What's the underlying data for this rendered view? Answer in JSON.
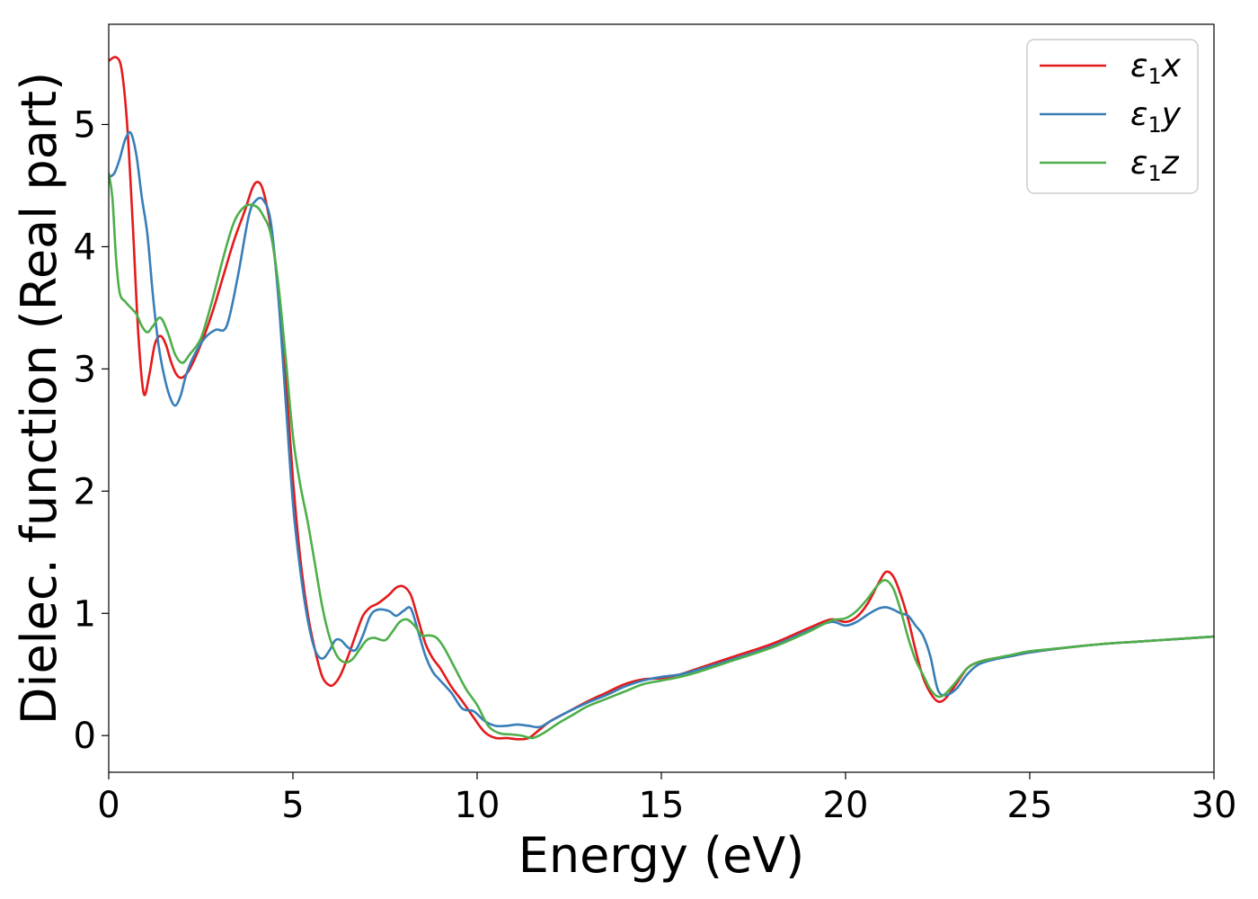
{
  "chart_data": {
    "type": "line",
    "xlabel": "Energy (eV)",
    "ylabel": "Dielec. function (Real part)",
    "xlim": [
      0,
      30
    ],
    "ylim": [
      -0.3,
      5.82
    ],
    "xticks": [
      0,
      5,
      10,
      15,
      20,
      25,
      30
    ],
    "xtick_labels": [
      "0",
      "5",
      "10",
      "15",
      "20",
      "25",
      "30"
    ],
    "yticks": [
      0,
      1,
      2,
      3,
      4,
      5
    ],
    "ytick_labels": [
      "0",
      "1",
      "2",
      "3",
      "4",
      "5"
    ],
    "grid": false,
    "legend_position": "top-right",
    "series": [
      {
        "name": "ε1x",
        "legend_base": "ε",
        "legend_sub": "1",
        "legend_var": "x",
        "color": "#e41a1c",
        "x": [
          0,
          0.2,
          0.35,
          0.5,
          0.65,
          0.8,
          0.95,
          1.1,
          1.25,
          1.4,
          1.55,
          1.7,
          1.85,
          2.0,
          2.2,
          2.5,
          2.8,
          3.1,
          3.4,
          3.7,
          3.9,
          4.05,
          4.2,
          4.4,
          4.6,
          4.8,
          5.0,
          5.2,
          5.4,
          5.6,
          5.8,
          6.0,
          6.15,
          6.3,
          6.5,
          6.7,
          6.9,
          7.1,
          7.3,
          7.6,
          7.8,
          8.0,
          8.2,
          8.4,
          8.6,
          8.8,
          9.0,
          9.3,
          9.6,
          9.9,
          10.2,
          10.5,
          10.8,
          11.1,
          11.4,
          11.7,
          12.0,
          12.5,
          13.0,
          13.5,
          14.0,
          14.5,
          15.0,
          15.5,
          16.0,
          17.0,
          18.0,
          19.0,
          19.6,
          20.0,
          20.3,
          20.6,
          20.9,
          21.1,
          21.3,
          21.5,
          21.7,
          21.9,
          22.1,
          22.3,
          22.5,
          22.7,
          23.0,
          23.3,
          23.6,
          24.0,
          24.5,
          25.0,
          26.0,
          27.0,
          28.0,
          29.0,
          30.0
        ],
        "y": [
          5.52,
          5.55,
          5.45,
          5.0,
          4.2,
          3.3,
          2.8,
          2.95,
          3.2,
          3.27,
          3.2,
          3.05,
          2.95,
          2.93,
          3.0,
          3.2,
          3.45,
          3.75,
          4.05,
          4.3,
          4.48,
          4.53,
          4.45,
          4.15,
          3.65,
          2.95,
          2.1,
          1.45,
          1.0,
          0.7,
          0.48,
          0.41,
          0.43,
          0.5,
          0.65,
          0.82,
          0.98,
          1.05,
          1.08,
          1.15,
          1.21,
          1.22,
          1.15,
          0.95,
          0.75,
          0.63,
          0.55,
          0.4,
          0.28,
          0.15,
          0.03,
          -0.02,
          -0.02,
          -0.03,
          -0.02,
          0.05,
          0.12,
          0.2,
          0.28,
          0.35,
          0.42,
          0.46,
          0.47,
          0.5,
          0.55,
          0.65,
          0.75,
          0.88,
          0.95,
          0.93,
          0.97,
          1.08,
          1.25,
          1.34,
          1.3,
          1.15,
          0.95,
          0.7,
          0.48,
          0.35,
          0.28,
          0.3,
          0.42,
          0.55,
          0.6,
          0.63,
          0.65,
          0.68,
          0.72,
          0.75,
          0.77,
          0.79,
          0.81
        ]
      },
      {
        "name": "ε1y",
        "legend_base": "ε",
        "legend_sub": "1",
        "legend_var": "y",
        "color": "#377eb8",
        "x": [
          0,
          0.15,
          0.3,
          0.45,
          0.6,
          0.75,
          0.9,
          1.05,
          1.2,
          1.35,
          1.5,
          1.65,
          1.8,
          1.95,
          2.1,
          2.3,
          2.6,
          2.9,
          3.2,
          3.5,
          3.8,
          4.0,
          4.2,
          4.4,
          4.6,
          4.8,
          5.0,
          5.2,
          5.4,
          5.6,
          5.8,
          6.0,
          6.15,
          6.3,
          6.5,
          6.7,
          6.9,
          7.1,
          7.3,
          7.6,
          7.8,
          8.0,
          8.2,
          8.4,
          8.6,
          8.8,
          9.0,
          9.3,
          9.6,
          9.9,
          10.2,
          10.5,
          10.8,
          11.1,
          11.4,
          11.7,
          12.0,
          12.5,
          13.0,
          13.5,
          14.0,
          14.5,
          15.0,
          15.5,
          16.0,
          17.0,
          18.0,
          19.0,
          19.6,
          20.0,
          20.3,
          20.6,
          20.9,
          21.1,
          21.3,
          21.5,
          21.7,
          21.9,
          22.1,
          22.3,
          22.5,
          22.7,
          23.0,
          23.3,
          23.6,
          24.0,
          24.5,
          25.0,
          26.0,
          27.0,
          28.0,
          29.0,
          30.0
        ],
        "y": [
          4.57,
          4.6,
          4.72,
          4.88,
          4.93,
          4.75,
          4.4,
          4.1,
          3.6,
          3.2,
          2.95,
          2.78,
          2.7,
          2.78,
          2.95,
          3.1,
          3.25,
          3.32,
          3.35,
          3.75,
          4.25,
          4.38,
          4.38,
          4.2,
          3.6,
          2.75,
          1.9,
          1.35,
          0.95,
          0.7,
          0.63,
          0.7,
          0.78,
          0.78,
          0.72,
          0.7,
          0.82,
          0.98,
          1.03,
          1.02,
          0.98,
          1.02,
          1.04,
          0.85,
          0.65,
          0.52,
          0.45,
          0.35,
          0.22,
          0.2,
          0.12,
          0.08,
          0.08,
          0.09,
          0.08,
          0.07,
          0.12,
          0.2,
          0.27,
          0.33,
          0.4,
          0.45,
          0.48,
          0.5,
          0.54,
          0.63,
          0.73,
          0.86,
          0.93,
          0.9,
          0.93,
          0.99,
          1.04,
          1.05,
          1.03,
          1.0,
          0.98,
          0.9,
          0.82,
          0.65,
          0.38,
          0.33,
          0.38,
          0.5,
          0.58,
          0.62,
          0.65,
          0.68,
          0.72,
          0.75,
          0.77,
          0.79,
          0.81
        ]
      },
      {
        "name": "ε1z",
        "legend_base": "ε",
        "legend_sub": "1",
        "legend_var": "z",
        "color": "#4daf4a",
        "x": [
          0,
          0.1,
          0.2,
          0.3,
          0.45,
          0.6,
          0.75,
          0.9,
          1.05,
          1.2,
          1.4,
          1.6,
          1.8,
          2.0,
          2.2,
          2.5,
          2.8,
          3.1,
          3.4,
          3.7,
          4.0,
          4.2,
          4.4,
          4.6,
          4.8,
          5.0,
          5.2,
          5.4,
          5.6,
          5.8,
          6.0,
          6.2,
          6.4,
          6.6,
          6.8,
          7.0,
          7.2,
          7.5,
          7.7,
          7.9,
          8.1,
          8.3,
          8.5,
          8.7,
          8.9,
          9.1,
          9.4,
          9.7,
          10.0,
          10.3,
          10.6,
          10.9,
          11.2,
          11.5,
          11.8,
          12.2,
          12.6,
          13.0,
          13.5,
          14.0,
          14.5,
          15.0,
          15.5,
          16.0,
          17.0,
          18.0,
          19.0,
          19.6,
          20.0,
          20.3,
          20.6,
          20.9,
          21.1,
          21.3,
          21.5,
          21.7,
          21.9,
          22.1,
          22.3,
          22.5,
          22.7,
          23.0,
          23.3,
          23.6,
          24.0,
          24.5,
          25.0,
          26.0,
          27.0,
          28.0,
          29.0,
          30.0
        ],
        "y": [
          4.6,
          4.4,
          3.9,
          3.62,
          3.55,
          3.5,
          3.45,
          3.35,
          3.3,
          3.35,
          3.42,
          3.3,
          3.12,
          3.05,
          3.12,
          3.25,
          3.55,
          3.9,
          4.2,
          4.33,
          4.33,
          4.25,
          4.1,
          3.7,
          3.1,
          2.45,
          2.05,
          1.75,
          1.4,
          1.05,
          0.8,
          0.65,
          0.6,
          0.62,
          0.7,
          0.78,
          0.8,
          0.78,
          0.85,
          0.93,
          0.95,
          0.9,
          0.82,
          0.82,
          0.8,
          0.72,
          0.55,
          0.38,
          0.25,
          0.08,
          0.02,
          0.01,
          0.0,
          -0.02,
          0.02,
          0.1,
          0.17,
          0.24,
          0.3,
          0.36,
          0.42,
          0.45,
          0.48,
          0.52,
          0.62,
          0.72,
          0.85,
          0.94,
          0.96,
          1.02,
          1.12,
          1.24,
          1.27,
          1.2,
          1.02,
          0.8,
          0.62,
          0.5,
          0.38,
          0.32,
          0.34,
          0.44,
          0.55,
          0.6,
          0.63,
          0.66,
          0.69,
          0.72,
          0.75,
          0.77,
          0.79,
          0.81
        ]
      }
    ]
  }
}
